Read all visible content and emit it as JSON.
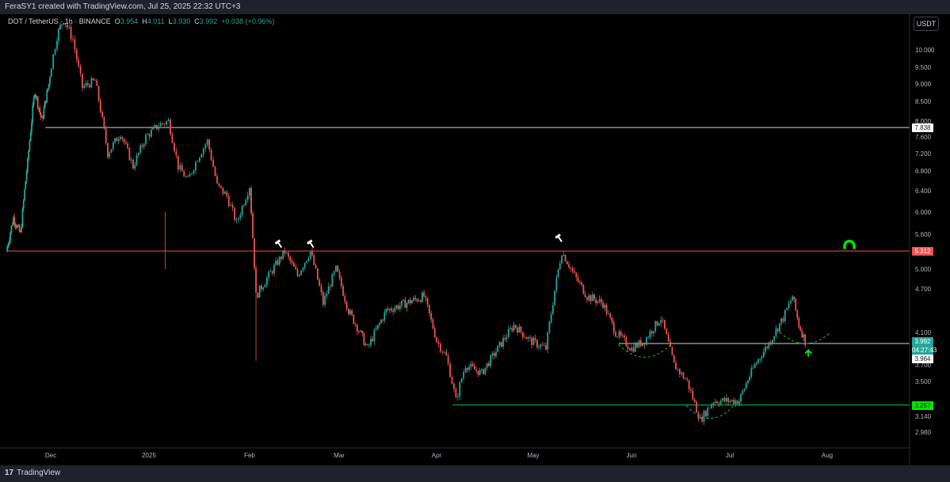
{
  "header": {
    "credit": "FeraSY1 created with TradingView.com, Jul 25, 2025 22:32 UTC+3"
  },
  "legend": {
    "symbol": "DOT / TetherUS · 1h · BINANCE",
    "o_label": "O",
    "o": "3.954",
    "h_label": "H",
    "h": "4.011",
    "l_label": "L",
    "l": "3.930",
    "c_label": "C",
    "c": "3.992",
    "change": "+0.038 (+0.96%)"
  },
  "currency": "USDT",
  "footer": {
    "brand": "TradingView"
  },
  "colors": {
    "up": "#26a69a",
    "down": "#ef5350",
    "red_level": "#ef5350",
    "green_level": "#00e600",
    "white_level": "#ffffff"
  },
  "chart_data": {
    "type": "candlestick",
    "symbol": "DOT / TetherUS",
    "interval": "1h",
    "exchange": "BINANCE",
    "yaxis_ticks": [
      "10.000",
      "9.500",
      "9.000",
      "8.500",
      "8.000",
      "7.600",
      "7.200",
      "6.800",
      "6.400",
      "6.000",
      "5.600",
      "5.000",
      "4.700",
      "4.100",
      "3.700",
      "3.500",
      "3.140",
      "2.980"
    ],
    "xaxis_ticks": [
      "Dec",
      "2025",
      "Feb",
      "Mar",
      "Apr",
      "May",
      "Jun",
      "Jul",
      "Aug"
    ],
    "price_tags": [
      {
        "value": "7.838",
        "style": "white"
      },
      {
        "value": "5.312",
        "style": "red"
      },
      {
        "value": "3.992",
        "style": "teal"
      },
      {
        "value": "04:27:43",
        "style": "teal"
      },
      {
        "value": "3.964",
        "style": "white"
      },
      {
        "value": "3.257",
        "style": "green"
      }
    ],
    "horizontal_levels": [
      {
        "price": 7.838,
        "color": "white",
        "from": "Nov 28"
      },
      {
        "price": 5.312,
        "color": "red",
        "from": "Nov 2024"
      },
      {
        "price": 3.964,
        "color": "white",
        "from": "May 28"
      },
      {
        "price": 3.257,
        "color": "green",
        "from": "Apr 6"
      }
    ],
    "path_points": [
      [
        "Nov 2024",
        5.3
      ],
      [
        "Nov 10",
        5.9
      ],
      [
        "Nov 14",
        5.6
      ],
      [
        "Nov 18",
        7.0
      ],
      [
        "Nov 22",
        8.8
      ],
      [
        "Nov 26",
        8.0
      ],
      [
        "Nov 30",
        9.0
      ],
      [
        "Dec 3",
        10.4
      ],
      [
        "Dec 5",
        10.9
      ],
      [
        "Dec 8",
        10.3
      ],
      [
        "Dec 11",
        8.9
      ],
      [
        "Dec 15",
        9.1
      ],
      [
        "Dec 19",
        7.2
      ],
      [
        "Dec 23",
        7.7
      ],
      [
        "Dec 27",
        6.9
      ],
      [
        "Dec 31",
        7.6
      ],
      [
        "Jan 4",
        7.9
      ],
      [
        "Jan 7",
        8.0
      ],
      [
        "Jan 10",
        6.9
      ],
      [
        "Jan 13",
        6.6
      ],
      [
        "Jan 16",
        7.1
      ],
      [
        "Jan 19",
        7.5
      ],
      [
        "Jan 22",
        6.5
      ],
      [
        "Jan 25",
        6.3
      ],
      [
        "Jan 28",
        5.8
      ],
      [
        "Feb 1",
        6.5
      ],
      [
        "Feb 3",
        4.6
      ],
      [
        "Feb 7",
        4.9
      ],
      [
        "Feb 12",
        5.3
      ],
      [
        "Feb 16",
        4.9
      ],
      [
        "Feb 20",
        5.3
      ],
      [
        "Feb 24",
        4.5
      ],
      [
        "Feb 28",
        5.0
      ],
      [
        "Mar 4",
        4.4
      ],
      [
        "Mar 10",
        3.9
      ],
      [
        "Mar 16",
        4.4
      ],
      [
        "Mar 22",
        4.5
      ],
      [
        "Mar 28",
        4.6
      ],
      [
        "Apr 1",
        4.0
      ],
      [
        "Apr 4",
        3.8
      ],
      [
        "Apr 7",
        3.3
      ],
      [
        "Apr 10",
        3.7
      ],
      [
        "Apr 15",
        3.6
      ],
      [
        "Apr 20",
        3.9
      ],
      [
        "Apr 25",
        4.2
      ],
      [
        "Apr 30",
        4.0
      ],
      [
        "May 5",
        3.9
      ],
      [
        "May 10",
        5.3
      ],
      [
        "May 14",
        4.9
      ],
      [
        "May 18",
        4.6
      ],
      [
        "May 23",
        4.5
      ],
      [
        "May 27",
        4.1
      ],
      [
        "Jun 1",
        3.9
      ],
      [
        "Jun 5",
        4.0
      ],
      [
        "Jun 10",
        4.3
      ],
      [
        "Jun 14",
        3.7
      ],
      [
        "Jun 18",
        3.5
      ],
      [
        "Jun 22",
        3.1
      ],
      [
        "Jun 26",
        3.3
      ],
      [
        "Jun 30",
        3.3
      ],
      [
        "Jul 4",
        3.3
      ],
      [
        "Jul 9",
        3.7
      ],
      [
        "Jul 14",
        4.0
      ],
      [
        "Jul 18",
        4.3
      ],
      [
        "Jul 21",
        4.6
      ],
      [
        "Jul 23",
        4.2
      ],
      [
        "Jul 25",
        3.992
      ]
    ],
    "annotations": [
      {
        "type": "hammer-icon",
        "near": "Feb 10",
        "price": 5.45
      },
      {
        "type": "hammer-icon",
        "near": "Feb 20",
        "price": 5.45
      },
      {
        "type": "hammer-icon",
        "near": "May 9",
        "price": 5.55
      },
      {
        "type": "magnet-icon",
        "color": "#00e600",
        "price": 5.4
      },
      {
        "type": "arc",
        "style": "dashed green",
        "near": "Jun 5"
      },
      {
        "type": "arc",
        "style": "dashed green",
        "near": "Jun 25"
      },
      {
        "type": "arc",
        "style": "dashed green",
        "near": "Jul 25"
      },
      {
        "type": "arrow-up-icon",
        "color": "#00e600",
        "near": "Jul 25"
      }
    ]
  }
}
